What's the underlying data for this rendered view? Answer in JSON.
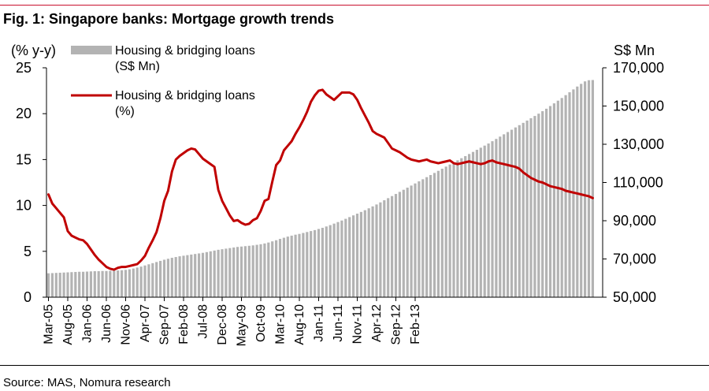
{
  "figure": {
    "title": "Fig. 1: Singapore banks: Mortgage growth trends",
    "source": "Source: MAS, Nomura research"
  },
  "chart_data": {
    "type": "bar+line",
    "title": "Fig. 1: Singapore banks: Mortgage growth trends",
    "left_axis_label": "(% y-y)",
    "right_axis_label": "S$ Mn",
    "left_ylim": [
      0,
      25
    ],
    "left_ticks": [
      "0",
      "5",
      "10",
      "15",
      "20",
      "25"
    ],
    "right_ylim": [
      50000,
      170000
    ],
    "right_ticks": [
      "50,000",
      "70,000",
      "90,000",
      "110,000",
      "130,000",
      "150,000",
      "170,000"
    ],
    "x_ticks": [
      "Mar-05",
      "Aug-05",
      "Jan-06",
      "Jun-06",
      "Nov-06",
      "Apr-07",
      "Sep-07",
      "Feb-08",
      "Jul-08",
      "Dec-08",
      "May-09",
      "Oct-09",
      "Mar-10",
      "Aug-10",
      "Jan-11",
      "Jun-11",
      "Nov-11",
      "Apr-12",
      "Sep-12",
      "Feb-13"
    ],
    "grid": false,
    "legend": [
      {
        "label_line1": "Housing & bridging loans",
        "label_line2": "(S$ Mn)",
        "kind": "bar",
        "color": "#b3b3b3"
      },
      {
        "label_line1": "Housing & bridging loans",
        "label_line2": "(%)",
        "kind": "line",
        "color": "#c00000"
      }
    ],
    "series": [
      {
        "name": "Housing & bridging loans (S$ Mn)",
        "kind": "bar",
        "axis": "right",
        "color": "#b3b3b3",
        "start": "Mar-05",
        "frequency": "monthly",
        "values": [
          62500,
          62600,
          62700,
          62800,
          62900,
          63000,
          63100,
          63200,
          63300,
          63300,
          63400,
          63500,
          63600,
          63600,
          63700,
          63700,
          63800,
          63900,
          64000,
          64100,
          64300,
          64600,
          65000,
          65500,
          66000,
          66600,
          67200,
          67800,
          68400,
          69000,
          69600,
          70100,
          70600,
          71000,
          71400,
          71700,
          72000,
          72300,
          72600,
          72900,
          73200,
          73600,
          74000,
          74400,
          74800,
          75100,
          75400,
          75700,
          76000,
          76300,
          76500,
          76700,
          76900,
          77100,
          77400,
          77700,
          78100,
          78600,
          79200,
          79800,
          80500,
          81100,
          81700,
          82200,
          82700,
          83100,
          83600,
          84100,
          84600,
          85100,
          85700,
          86300,
          87000,
          87700,
          88500,
          89300,
          90100,
          91000,
          91900,
          92800,
          93700,
          94600,
          95500,
          96500,
          97500,
          98500,
          99600,
          100700,
          101800,
          102900,
          104000,
          105100,
          106200,
          107300,
          108400,
          109500,
          110600,
          111700,
          112800,
          113900,
          115000,
          116100,
          117200,
          118300,
          119400,
          120500,
          121600,
          122700,
          123800,
          124900,
          126000,
          127100,
          128200,
          129300,
          130400,
          131600,
          132800,
          134000,
          135200,
          136400,
          137600,
          138800,
          140000,
          141200,
          142400,
          143600,
          144800,
          146000,
          147300,
          148600,
          150000,
          151400,
          152800,
          154200,
          155700,
          157200,
          158700,
          160200,
          161600,
          162900,
          163500,
          163600
        ]
      },
      {
        "name": "Housing & bridging loans (%)",
        "kind": "line",
        "axis": "left",
        "color": "#c00000",
        "start": "Mar-05",
        "frequency": "monthly",
        "values": [
          11.2,
          10.2,
          9.7,
          9.2,
          8.7,
          7.2,
          6.7,
          6.5,
          6.3,
          6.2,
          5.8,
          5.2,
          4.6,
          4.1,
          3.7,
          3.3,
          3.1,
          3.0,
          3.2,
          3.3,
          3.3,
          3.4,
          3.5,
          3.6,
          4.0,
          4.5,
          5.4,
          6.2,
          7.1,
          8.6,
          10.5,
          11.6,
          13.7,
          15.0,
          15.4,
          15.7,
          16.0,
          16.2,
          16.1,
          15.6,
          15.1,
          14.8,
          14.5,
          14.2,
          11.7,
          10.5,
          9.7,
          8.9,
          8.3,
          8.4,
          8.1,
          7.9,
          8.0,
          8.4,
          8.6,
          9.4,
          10.5,
          10.7,
          12.6,
          14.4,
          14.9,
          16.0,
          16.5,
          17.0,
          17.8,
          18.5,
          19.3,
          20.2,
          21.3,
          22.0,
          22.5,
          22.6,
          22.1,
          21.8,
          21.5,
          21.9,
          22.3,
          22.3,
          22.3,
          22.1,
          21.5,
          20.6,
          19.8,
          19.0,
          18.1,
          17.8,
          17.6,
          17.4,
          16.8,
          16.2,
          16.0,
          15.8,
          15.5,
          15.2,
          15.0,
          14.9,
          14.8,
          14.9,
          15.0,
          14.8,
          14.7,
          14.6,
          14.7,
          14.8,
          14.9,
          14.6,
          14.5,
          14.6,
          14.7,
          14.8,
          14.7,
          14.6,
          14.5,
          14.6,
          14.8,
          14.9,
          14.7,
          14.6,
          14.5,
          14.4,
          14.3,
          14.2,
          14.0,
          13.6,
          13.3,
          13.0,
          12.8,
          12.6,
          12.5,
          12.3,
          12.1,
          12.0,
          11.9,
          11.8,
          11.6,
          11.5,
          11.4,
          11.3,
          11.2,
          11.1,
          11.0,
          10.8
        ]
      }
    ]
  }
}
